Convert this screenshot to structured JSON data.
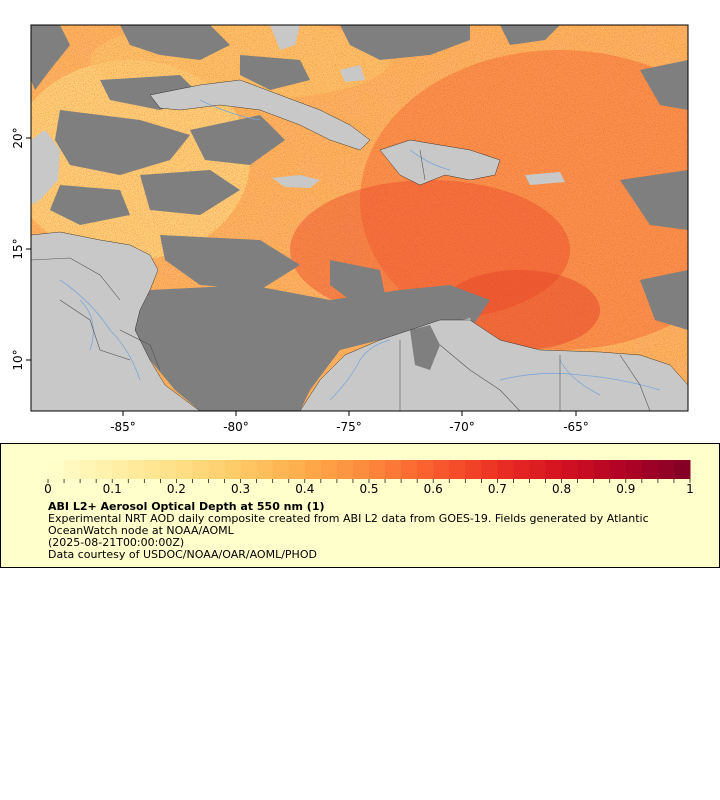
{
  "map": {
    "x_ticks": [
      "-85°",
      "-80°",
      "-75°",
      "-70°",
      "-65°"
    ],
    "y_ticks": [
      "20°",
      "15°",
      "10°"
    ],
    "colors": {
      "land": "#c8c8c8",
      "no_data": "#7f7f7f",
      "rivers": "#7ea7d6",
      "borders": "#555555",
      "coast": "#000000"
    }
  },
  "legend": {
    "ticks": [
      "0",
      "0.1",
      "0.2",
      "0.3",
      "0.4",
      "0.5",
      "0.6",
      "0.7",
      "0.8",
      "0.9",
      "1"
    ],
    "range": [
      0,
      1
    ],
    "colormap": [
      "#ffffcc",
      "#fff0a8",
      "#fee087",
      "#fec965",
      "#feab4b",
      "#fd893c",
      "#fa5c2e",
      "#ec3023",
      "#d31121",
      "#af0225",
      "#800026"
    ],
    "title": "ABI L2+ Aerosol Optical Depth at 550 nm (1)",
    "description": "Experimental NRT AOD daily composite created from ABI L2 data from GOES-19. Fields generated by Atlantic OceanWatch node at NOAA/AOML",
    "date": "(2025-08-21T00:00:00Z)",
    "credit": "Data courtesy of USDOC/NOAA/OAR/AOML/PHOD"
  }
}
